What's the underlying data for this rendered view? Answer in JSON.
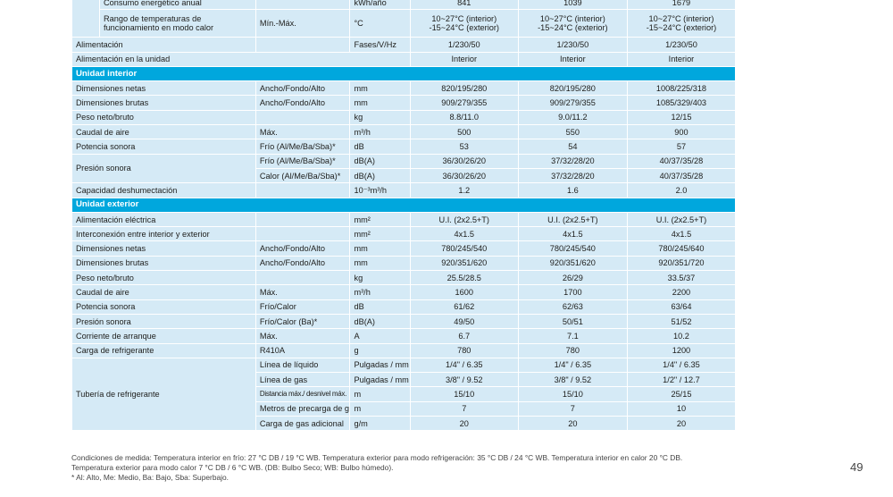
{
  "table": {
    "rows": [
      {
        "type": "top",
        "label": "Consumo energético anual",
        "sub": "",
        "unit": "kWh/año",
        "values": [
          "841",
          "1039",
          "1679"
        ]
      },
      {
        "type": "top2",
        "label": "Rango de temperaturas de funcionamiento en modo calor",
        "sub": "Mín.-Máx.",
        "unit": "°C",
        "values": [
          "10~27°C (interior) -15~24°C (exterior)",
          "10~27°C (interior) -15~24°C (exterior)",
          "10~27°C (interior) -15~24°C (exterior)"
        ]
      },
      {
        "type": "row",
        "label": "Alimentación",
        "sub": "",
        "unit": "Fases/V/Hz",
        "values": [
          "1/230/50",
          "1/230/50",
          "1/230/50"
        ]
      },
      {
        "type": "wide",
        "label": "Alimentación en la unidad",
        "values": [
          "Interior",
          "Interior",
          "Interior"
        ]
      },
      {
        "type": "section",
        "label": "Unidad interior"
      },
      {
        "type": "row",
        "label": "Dimensiones netas",
        "sub": "Ancho/Fondo/Alto",
        "unit": "mm",
        "values": [
          "820/195/280",
          "820/195/280",
          "1008/225/318"
        ]
      },
      {
        "type": "row",
        "label": "Dimensiones brutas",
        "sub": "Ancho/Fondo/Alto",
        "unit": "mm",
        "values": [
          "909/279/355",
          "909/279/355",
          "1085/329/403"
        ]
      },
      {
        "type": "row",
        "label": "Peso neto/bruto",
        "sub": "",
        "unit": "kg",
        "values": [
          "8.8/11.0",
          "9.0/11.2",
          "12/15"
        ]
      },
      {
        "type": "row",
        "label": "Caudal de aire",
        "sub": "Máx.",
        "unit": "m³/h",
        "values": [
          "500",
          "550",
          "900"
        ]
      },
      {
        "type": "row",
        "label": "Potencia sonora",
        "sub": "Frío (Al/Me/Ba/Sba)*",
        "unit": "dB",
        "values": [
          "53",
          "54",
          "57"
        ]
      },
      {
        "type": "group2",
        "label": "Presión sonora",
        "sub": "Frío (Al/Me/Ba/Sba)*",
        "unit": "dB(A)",
        "values": [
          "36/30/26/20",
          "37/32/28/20",
          "40/37/35/28"
        ]
      },
      {
        "type": "cont",
        "sub": "Calor (Al/Me/Ba/Sba)*",
        "unit": "dB(A)",
        "values": [
          "36/30/26/20",
          "37/32/28/20",
          "40/37/35/28"
        ]
      },
      {
        "type": "row",
        "label": "Capacidad deshumectación",
        "sub": "",
        "unit": "10⁻³m³/h",
        "values": [
          "1.2",
          "1.6",
          "2.0"
        ]
      },
      {
        "type": "section",
        "label": "Unidad exterior"
      },
      {
        "type": "row",
        "label": "Alimentación eléctrica",
        "sub": "",
        "unit": "mm²",
        "values": [
          "U.I. (2x2.5+T)",
          "U.I. (2x2.5+T)",
          "U.I. (2x2.5+T)"
        ]
      },
      {
        "type": "row",
        "label": "Interconexión entre interior y exterior",
        "sub": "",
        "unit": "mm²",
        "values": [
          "4x1.5",
          "4x1.5",
          "4x1.5"
        ]
      },
      {
        "type": "row",
        "label": "Dimensiones netas",
        "sub": "Ancho/Fondo/Alto",
        "unit": "mm",
        "values": [
          "780/245/540",
          "780/245/540",
          "780/245/640"
        ]
      },
      {
        "type": "row",
        "label": "Dimensiones brutas",
        "sub": "Ancho/Fondo/Alto",
        "unit": "mm",
        "values": [
          "920/351/620",
          "920/351/620",
          "920/351/720"
        ]
      },
      {
        "type": "row",
        "label": "Peso neto/bruto",
        "sub": "",
        "unit": "kg",
        "values": [
          "25.5/28.5",
          "26/29",
          "33.5/37"
        ]
      },
      {
        "type": "row",
        "label": "Caudal de aire",
        "sub": "Máx.",
        "unit": "m³/h",
        "values": [
          "1600",
          "1700",
          "2200"
        ]
      },
      {
        "type": "row",
        "label": "Potencia sonora",
        "sub": "Frío/Calor",
        "unit": "dB",
        "values": [
          "61/62",
          "62/63",
          "63/64"
        ]
      },
      {
        "type": "row",
        "label": "Presión sonora",
        "sub": "Frío/Calor (Ba)*",
        "unit": "dB(A)",
        "values": [
          "49/50",
          "50/51",
          "51/52"
        ]
      },
      {
        "type": "row",
        "label": "Corriente de arranque",
        "sub": "Máx.",
        "unit": "A",
        "values": [
          "6.7",
          "7.1",
          "10.2"
        ]
      },
      {
        "type": "row",
        "label": "Carga de refrigerante",
        "sub": "R410A",
        "unit": "g",
        "values": [
          "780",
          "780",
          "1200"
        ]
      },
      {
        "type": "group5",
        "label": "Tubería de refrigerante",
        "sub": "Línea de líquido",
        "unit": "Pulgadas / mm",
        "values": [
          "1/4\" / 6.35",
          "1/4\" / 6.35",
          "1/4\" / 6.35"
        ]
      },
      {
        "type": "cont",
        "sub": "Línea de gas",
        "unit": "Pulgadas / mm",
        "values": [
          "3/8\" / 9.52",
          "3/8\" / 9.52",
          "1/2\" / 12.7"
        ]
      },
      {
        "type": "cont",
        "sub": "Distancia máx./ desnivel máx.",
        "unit": "m",
        "values": [
          "15/10",
          "15/10",
          "25/15"
        ],
        "small": true
      },
      {
        "type": "cont",
        "sub": "Metros de precarga de gas",
        "unit": "m",
        "values": [
          "7",
          "7",
          "10"
        ]
      },
      {
        "type": "cont",
        "sub": "Carga de gas adicional",
        "unit": "g/m",
        "values": [
          "20",
          "20",
          "20"
        ]
      }
    ]
  },
  "footnote": {
    "line1": "Condiciones de medida: Temperatura interior en frío: 27 °C DB / 19 °C WB. Temperatura exterior para modo refrigeración: 35 °C DB / 24 °C WB. Temperatura interior en calor 20 °C DB.",
    "line2": "Temperatura exterior para modo calor 7 °C DB / 6 °C WB. (DB: Bulbo Seco; WB: Bulbo húmedo).",
    "line3": "* Al: Alto, Me: Medio, Ba: Bajo, Sba: Superbajo."
  },
  "page_number": "49"
}
